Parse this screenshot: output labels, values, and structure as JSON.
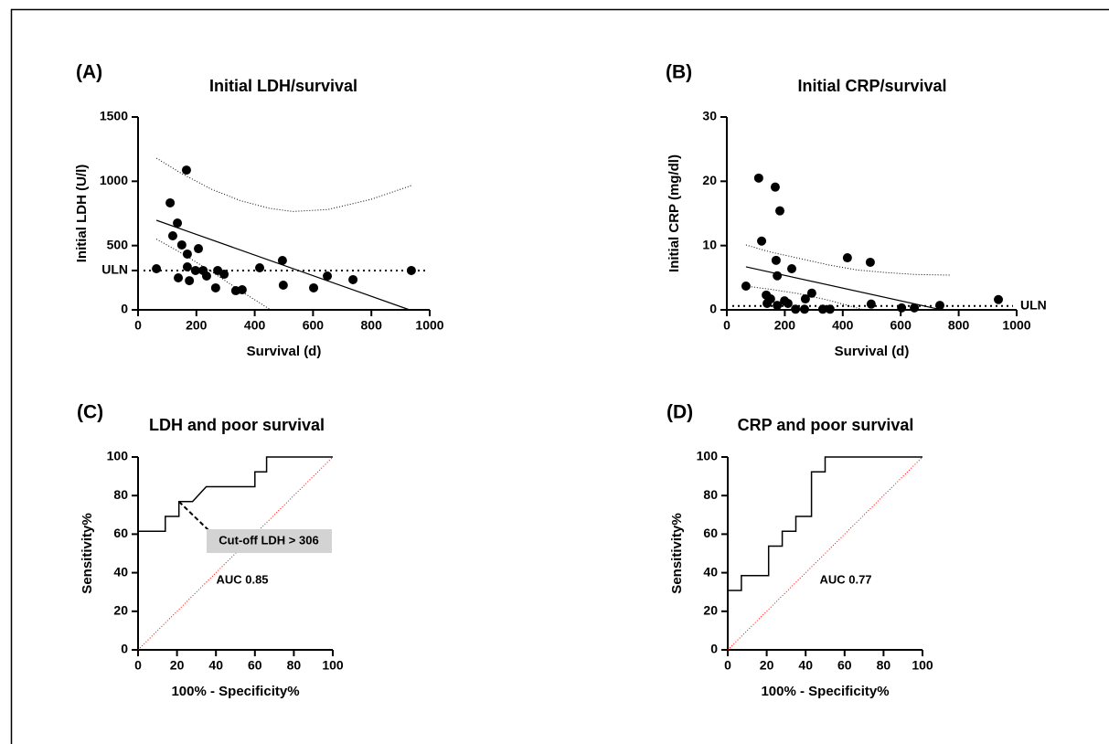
{
  "chart_data": [
    {
      "type": "scatter",
      "panel_label": "(A)",
      "title": "Initial LDH/survival",
      "x_label": "Survival (d)",
      "y_label": "Initial LDH (U/l)",
      "xlim": [
        0,
        1000
      ],
      "xticks": [
        0,
        200,
        400,
        600,
        800,
        1000
      ],
      "ylim": [
        0,
        1500
      ],
      "yticks": [
        0,
        {
          "value": 306,
          "label": "ULN"
        },
        500,
        1000,
        1500
      ],
      "series": [
        {
          "color": "#000000",
          "x": [
            63,
            110,
            166,
            135,
            119,
            150,
            207,
            169,
            169,
            197,
            223,
            138,
            176,
            235,
            273,
            295,
            266,
            335,
            357,
            417,
            495,
            498,
            602,
            649,
            737,
            937
          ],
          "values": [
            320,
            832,
            1087,
            675,
            576,
            505,
            476,
            434,
            334,
            306,
            306,
            249,
            227,
            263,
            306,
            277,
            171,
            149,
            156,
            327,
            384,
            192,
            171,
            263,
            235,
            306
          ]
        }
      ],
      "fit": {
        "x": [
          63,
          931
        ],
        "values": [
          697,
          0
        ]
      },
      "bands": [
        {
          "x": [
            63,
            150,
            250,
            350,
            450,
            530,
            650,
            800,
            937
          ],
          "values": [
            1180,
            1060,
            940,
            850,
            790,
            765,
            780,
            860,
            967
          ]
        },
        {
          "x": [
            63,
            150,
            250,
            350,
            455
          ],
          "values": [
            550,
            440,
            300,
            150,
            0
          ]
        }
      ],
      "reference_line": {
        "value": 306
      }
    },
    {
      "type": "scatter",
      "panel_label": "(B)",
      "title": "Initial CRP/survival",
      "x_label": "Survival (d)",
      "y_label": "Initial CRP (mg/dl)",
      "xlim": [
        0,
        1000
      ],
      "xticks": [
        0,
        200,
        400,
        600,
        800,
        1000
      ],
      "ylim": [
        0,
        30
      ],
      "yticks": [
        0,
        10,
        20,
        30
      ],
      "series": [
        {
          "color": "#000000",
          "x": [
            66,
            110,
            120,
            167,
            183,
            170,
            174,
            224,
            136,
            151,
            139,
            174,
            199,
            211,
            237,
            271,
            293,
            268,
            331,
            356,
            416,
            495,
            498,
            603,
            647,
            735,
            937
          ],
          "values": [
            3.7,
            20.5,
            10.7,
            19.1,
            15.4,
            7.7,
            5.3,
            6.4,
            2.3,
            1.7,
            1.0,
            0.7,
            1.4,
            1.0,
            0.1,
            1.7,
            2.6,
            0.1,
            0.1,
            0.1,
            8.1,
            7.4,
            0.9,
            0.3,
            0.3,
            0.7,
            1.6
          ]
        }
      ],
      "fit": {
        "x": [
          66,
          741
        ],
        "values": [
          6.7,
          0
        ]
      },
      "bands": [
        {
          "x": [
            66,
            150,
            250,
            350,
            450,
            550,
            650,
            770
          ],
          "values": [
            10.1,
            9.0,
            8.0,
            7.0,
            6.2,
            5.8,
            5.5,
            5.4
          ]
        },
        {
          "x": [
            66,
            150,
            250,
            350,
            473
          ],
          "values": [
            3.7,
            3.2,
            2.5,
            1.5,
            0
          ]
        }
      ],
      "reference_line": {
        "value": 0.6,
        "label": "ULN"
      }
    },
    {
      "type": "line",
      "panel_label": "(C)",
      "title": "LDH and poor survival",
      "x_label": "100% - Specificity%",
      "y_label": "Sensitivity%",
      "xlim": [
        0,
        100
      ],
      "xticks": [
        0,
        20,
        40,
        60,
        80,
        100
      ],
      "ylim": [
        0,
        100
      ],
      "yticks": [
        0,
        20,
        40,
        60,
        80,
        100
      ],
      "series": [
        {
          "color": "#000000",
          "x": [
            0,
            14,
            14,
            21,
            21,
            28,
            35,
            60,
            60,
            66,
            66,
            100
          ],
          "values": [
            61.5,
            61.5,
            69.2,
            69.2,
            76.9,
            76.9,
            84.6,
            84.6,
            92.3,
            92.3,
            100,
            100
          ]
        }
      ],
      "diagonal": {
        "color": "#ff0000",
        "x": [
          0,
          100
        ],
        "values": [
          0,
          100
        ]
      },
      "auc_label": "AUC 0.85",
      "cutoff_label": "Cut-off LDH > 306"
    },
    {
      "type": "line",
      "panel_label": "(D)",
      "title": "CRP and poor survival",
      "x_label": "100% - Specificity%",
      "y_label": "Sensitivity%",
      "xlim": [
        0,
        100
      ],
      "xticks": [
        0,
        20,
        40,
        60,
        80,
        100
      ],
      "ylim": [
        0,
        100
      ],
      "yticks": [
        0,
        20,
        40,
        60,
        80,
        100
      ],
      "series": [
        {
          "color": "#000000",
          "x": [
            0,
            7,
            7,
            21,
            21,
            28,
            28,
            35,
            35,
            43,
            43,
            50,
            50,
            100
          ],
          "values": [
            30.8,
            30.8,
            38.5,
            38.5,
            53.8,
            53.8,
            61.5,
            61.5,
            69.2,
            69.2,
            92.3,
            92.3,
            100,
            100
          ]
        }
      ],
      "diagonal": {
        "color": "#ff0000",
        "x": [
          0,
          100
        ],
        "values": [
          0,
          100
        ]
      },
      "auc_label": "AUC 0.77"
    }
  ]
}
